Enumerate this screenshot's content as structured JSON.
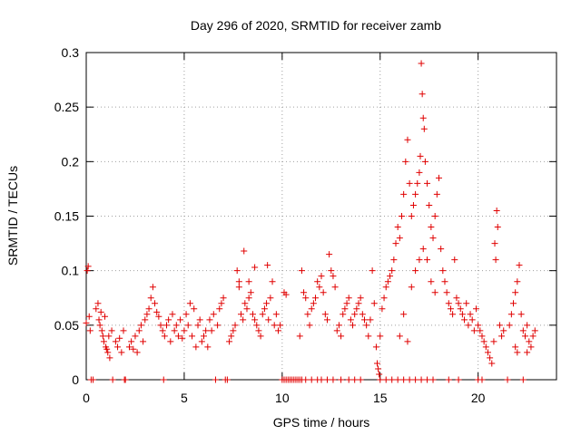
{
  "chart_data": {
    "type": "scatter",
    "title": "Day 296 of 2020, SRMTID for receiver zamb",
    "xlabel": "GPS time / hours",
    "ylabel": "SRMTID / TECUs",
    "xlim": [
      0,
      24
    ],
    "ylim": [
      0,
      0.3
    ],
    "xticks": [
      0,
      5,
      10,
      15,
      20
    ],
    "xtick_labels": [
      "0",
      "5",
      "10",
      "15",
      "20"
    ],
    "yticks": [
      0,
      0.05,
      0.1,
      0.15,
      0.2,
      0.25,
      0.3
    ],
    "ytick_labels": [
      "0",
      "0.05",
      "0.1",
      "0.15",
      "0.2",
      "0.25",
      "0.3"
    ],
    "grid": true,
    "marker": "+",
    "series": [
      {
        "name": "SRMTID",
        "color": "#e00000",
        "points": [
          [
            0.0,
            0.052
          ],
          [
            0.05,
            0.1
          ],
          [
            0.1,
            0.104
          ],
          [
            0.15,
            0.058
          ],
          [
            0.2,
            0.045
          ],
          [
            0.25,
            0.0
          ],
          [
            0.35,
            0.0
          ],
          [
            0.5,
            0.065
          ],
          [
            0.6,
            0.07
          ],
          [
            0.65,
            0.055
          ],
          [
            0.7,
            0.05
          ],
          [
            0.75,
            0.062
          ],
          [
            0.8,
            0.045
          ],
          [
            0.85,
            0.04
          ],
          [
            0.9,
            0.035
          ],
          [
            0.95,
            0.058
          ],
          [
            1.0,
            0.03
          ],
          [
            1.05,
            0.028
          ],
          [
            1.1,
            0.025
          ],
          [
            1.15,
            0.04
          ],
          [
            1.2,
            0.02
          ],
          [
            1.3,
            0.045
          ],
          [
            1.35,
            0.0
          ],
          [
            1.5,
            0.035
          ],
          [
            1.6,
            0.03
          ],
          [
            1.7,
            0.038
          ],
          [
            1.8,
            0.025
          ],
          [
            1.9,
            0.045
          ],
          [
            1.95,
            0.0
          ],
          [
            2.0,
            0.0
          ],
          [
            2.2,
            0.03
          ],
          [
            2.3,
            0.035
          ],
          [
            2.4,
            0.028
          ],
          [
            2.5,
            0.04
          ],
          [
            2.6,
            0.025
          ],
          [
            2.7,
            0.045
          ],
          [
            2.8,
            0.05
          ],
          [
            2.9,
            0.035
          ],
          [
            3.0,
            0.055
          ],
          [
            3.1,
            0.06
          ],
          [
            3.2,
            0.065
          ],
          [
            3.3,
            0.075
          ],
          [
            3.4,
            0.085
          ],
          [
            3.5,
            0.07
          ],
          [
            3.6,
            0.062
          ],
          [
            3.7,
            0.058
          ],
          [
            3.8,
            0.05
          ],
          [
            3.9,
            0.045
          ],
          [
            3.95,
            0.0
          ],
          [
            4.0,
            0.04
          ],
          [
            4.1,
            0.05
          ],
          [
            4.2,
            0.055
          ],
          [
            4.3,
            0.035
          ],
          [
            4.4,
            0.06
          ],
          [
            4.5,
            0.045
          ],
          [
            4.6,
            0.05
          ],
          [
            4.7,
            0.04
          ],
          [
            4.8,
            0.055
          ],
          [
            4.9,
            0.038
          ],
          [
            5.0,
            0.045
          ],
          [
            5.1,
            0.06
          ],
          [
            5.2,
            0.05
          ],
          [
            5.3,
            0.07
          ],
          [
            5.4,
            0.04
          ],
          [
            5.5,
            0.065
          ],
          [
            5.6,
            0.03
          ],
          [
            5.7,
            0.05
          ],
          [
            5.8,
            0.055
          ],
          [
            5.9,
            0.035
          ],
          [
            6.0,
            0.04
          ],
          [
            6.1,
            0.045
          ],
          [
            6.2,
            0.03
          ],
          [
            6.3,
            0.055
          ],
          [
            6.4,
            0.045
          ],
          [
            6.5,
            0.06
          ],
          [
            6.6,
            0.0
          ],
          [
            6.7,
            0.05
          ],
          [
            6.8,
            0.065
          ],
          [
            6.9,
            0.07
          ],
          [
            7.0,
            0.075
          ],
          [
            7.1,
            0.0
          ],
          [
            7.2,
            0.0
          ],
          [
            7.3,
            0.035
          ],
          [
            7.4,
            0.04
          ],
          [
            7.5,
            0.045
          ],
          [
            7.6,
            0.05
          ],
          [
            7.7,
            0.1
          ],
          [
            7.8,
            0.09
          ],
          [
            7.9,
            0.06
          ],
          [
            8.0,
            0.055
          ],
          [
            8.1,
            0.07
          ],
          [
            8.2,
            0.065
          ],
          [
            8.3,
            0.075
          ],
          [
            8.4,
            0.08
          ],
          [
            8.5,
            0.06
          ],
          [
            8.6,
            0.055
          ],
          [
            8.7,
            0.05
          ],
          [
            8.8,
            0.045
          ],
          [
            8.9,
            0.04
          ],
          [
            9.0,
            0.06
          ],
          [
            9.1,
            0.065
          ],
          [
            9.2,
            0.07
          ],
          [
            9.3,
            0.055
          ],
          [
            9.4,
            0.075
          ],
          [
            9.5,
            0.09
          ],
          [
            9.6,
            0.05
          ],
          [
            9.7,
            0.06
          ],
          [
            9.8,
            0.045
          ],
          [
            9.9,
            0.05
          ],
          [
            8.05,
            0.118
          ],
          [
            8.6,
            0.103
          ],
          [
            9.25,
            0.105
          ],
          [
            7.8,
            0.085
          ],
          [
            8.3,
            0.09
          ],
          [
            10.0,
            0.0
          ],
          [
            10.1,
            0.0
          ],
          [
            10.2,
            0.0
          ],
          [
            10.3,
            0.0
          ],
          [
            10.4,
            0.0
          ],
          [
            10.5,
            0.0
          ],
          [
            10.6,
            0.0
          ],
          [
            10.7,
            0.0
          ],
          [
            10.8,
            0.0
          ],
          [
            10.9,
            0.0
          ],
          [
            10.1,
            0.08
          ],
          [
            10.2,
            0.078
          ],
          [
            10.9,
            0.04
          ],
          [
            11.0,
            0.1
          ],
          [
            11.1,
            0.08
          ],
          [
            11.2,
            0.075
          ],
          [
            11.3,
            0.06
          ],
          [
            11.4,
            0.05
          ],
          [
            11.5,
            0.065
          ],
          [
            11.6,
            0.07
          ],
          [
            11.7,
            0.075
          ],
          [
            11.8,
            0.09
          ],
          [
            11.9,
            0.085
          ],
          [
            12.0,
            0.095
          ],
          [
            12.1,
            0.08
          ],
          [
            12.2,
            0.06
          ],
          [
            12.3,
            0.055
          ],
          [
            12.4,
            0.115
          ],
          [
            12.5,
            0.1
          ],
          [
            12.6,
            0.095
          ],
          [
            12.7,
            0.085
          ],
          [
            12.8,
            0.045
          ],
          [
            12.9,
            0.05
          ],
          [
            13.0,
            0.04
          ],
          [
            13.1,
            0.06
          ],
          [
            13.2,
            0.065
          ],
          [
            13.3,
            0.07
          ],
          [
            13.4,
            0.075
          ],
          [
            13.5,
            0.055
          ],
          [
            13.6,
            0.05
          ],
          [
            13.7,
            0.06
          ],
          [
            13.8,
            0.065
          ],
          [
            13.9,
            0.07
          ],
          [
            14.0,
            0.075
          ],
          [
            14.1,
            0.06
          ],
          [
            14.2,
            0.055
          ],
          [
            14.3,
            0.05
          ],
          [
            14.4,
            0.04
          ],
          [
            14.5,
            0.055
          ],
          [
            14.6,
            0.1
          ],
          [
            14.7,
            0.07
          ],
          [
            11.0,
            0.0
          ],
          [
            11.2,
            0.0
          ],
          [
            11.5,
            0.0
          ],
          [
            11.8,
            0.0
          ],
          [
            12.0,
            0.0
          ],
          [
            12.3,
            0.0
          ],
          [
            12.6,
            0.0
          ],
          [
            13.0,
            0.0
          ],
          [
            13.4,
            0.0
          ],
          [
            13.7,
            0.0
          ],
          [
            14.0,
            0.0
          ],
          [
            14.8,
            0.03
          ],
          [
            14.85,
            0.015
          ],
          [
            14.9,
            0.01
          ],
          [
            14.95,
            0.005
          ],
          [
            15.0,
            0.04
          ],
          [
            15.1,
            0.065
          ],
          [
            15.2,
            0.075
          ],
          [
            15.3,
            0.085
          ],
          [
            15.4,
            0.09
          ],
          [
            15.5,
            0.095
          ],
          [
            15.6,
            0.1
          ],
          [
            15.7,
            0.11
          ],
          [
            15.8,
            0.125
          ],
          [
            15.9,
            0.14
          ],
          [
            16.0,
            0.13
          ],
          [
            16.1,
            0.15
          ],
          [
            16.2,
            0.17
          ],
          [
            16.3,
            0.2
          ],
          [
            16.4,
            0.22
          ],
          [
            16.5,
            0.18
          ],
          [
            16.6,
            0.15
          ],
          [
            16.7,
            0.16
          ],
          [
            16.8,
            0.17
          ],
          [
            16.9,
            0.18
          ],
          [
            17.0,
            0.19
          ],
          [
            17.05,
            0.205
          ],
          [
            17.1,
            0.29
          ],
          [
            17.15,
            0.262
          ],
          [
            17.2,
            0.24
          ],
          [
            17.25,
            0.23
          ],
          [
            17.3,
            0.2
          ],
          [
            17.4,
            0.18
          ],
          [
            17.5,
            0.16
          ],
          [
            17.6,
            0.14
          ],
          [
            17.7,
            0.13
          ],
          [
            17.8,
            0.15
          ],
          [
            17.9,
            0.17
          ],
          [
            18.0,
            0.185
          ],
          [
            18.1,
            0.12
          ],
          [
            18.2,
            0.1
          ],
          [
            16.0,
            0.04
          ],
          [
            16.2,
            0.06
          ],
          [
            16.4,
            0.035
          ],
          [
            16.6,
            0.085
          ],
          [
            16.8,
            0.1
          ],
          [
            17.0,
            0.11
          ],
          [
            17.2,
            0.12
          ],
          [
            17.4,
            0.11
          ],
          [
            17.6,
            0.09
          ],
          [
            17.8,
            0.08
          ],
          [
            15.0,
            0.0
          ],
          [
            15.3,
            0.0
          ],
          [
            15.6,
            0.0
          ],
          [
            15.9,
            0.0
          ],
          [
            16.2,
            0.0
          ],
          [
            16.5,
            0.0
          ],
          [
            16.8,
            0.0
          ],
          [
            17.1,
            0.0
          ],
          [
            17.4,
            0.0
          ],
          [
            17.7,
            0.0
          ],
          [
            18.3,
            0.09
          ],
          [
            18.4,
            0.08
          ],
          [
            18.5,
            0.07
          ],
          [
            18.6,
            0.065
          ],
          [
            18.7,
            0.06
          ],
          [
            18.8,
            0.11
          ],
          [
            18.9,
            0.075
          ],
          [
            19.0,
            0.07
          ],
          [
            19.1,
            0.065
          ],
          [
            19.2,
            0.06
          ],
          [
            19.3,
            0.055
          ],
          [
            19.4,
            0.07
          ],
          [
            19.5,
            0.05
          ],
          [
            19.6,
            0.06
          ],
          [
            19.7,
            0.055
          ],
          [
            19.8,
            0.045
          ],
          [
            19.9,
            0.065
          ],
          [
            20.0,
            0.05
          ],
          [
            20.1,
            0.045
          ],
          [
            20.2,
            0.04
          ],
          [
            18.5,
            0.0
          ],
          [
            19.0,
            0.0
          ],
          [
            20.0,
            0.0
          ],
          [
            20.2,
            0.0
          ],
          [
            21.5,
            0.0
          ],
          [
            22.3,
            0.0
          ],
          [
            20.3,
            0.035
          ],
          [
            20.4,
            0.03
          ],
          [
            20.5,
            0.025
          ],
          [
            20.6,
            0.02
          ],
          [
            20.7,
            0.015
          ],
          [
            20.8,
            0.035
          ],
          [
            20.85,
            0.125
          ],
          [
            20.9,
            0.11
          ],
          [
            20.95,
            0.155
          ],
          [
            21.0,
            0.14
          ],
          [
            21.1,
            0.05
          ],
          [
            21.2,
            0.04
          ],
          [
            21.3,
            0.045
          ],
          [
            21.6,
            0.05
          ],
          [
            21.7,
            0.06
          ],
          [
            21.8,
            0.07
          ],
          [
            21.9,
            0.08
          ],
          [
            22.0,
            0.09
          ],
          [
            22.1,
            0.105
          ],
          [
            22.2,
            0.06
          ],
          [
            22.3,
            0.045
          ],
          [
            22.4,
            0.04
          ],
          [
            22.5,
            0.05
          ],
          [
            22.6,
            0.035
          ],
          [
            22.7,
            0.03
          ],
          [
            22.8,
            0.04
          ],
          [
            22.9,
            0.045
          ],
          [
            21.9,
            0.03
          ],
          [
            22.0,
            0.025
          ],
          [
            22.5,
            0.025
          ]
        ]
      }
    ]
  }
}
